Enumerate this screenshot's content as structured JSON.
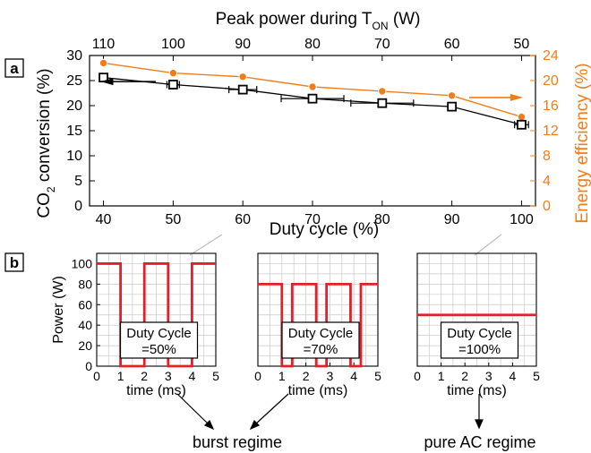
{
  "panel_labels": {
    "a": "a",
    "b": "b"
  },
  "colors": {
    "black": "#000000",
    "orange": "#f07d1a",
    "red": "#e0202a",
    "grey": "#bdbdbd"
  },
  "annotations": {
    "burst": "burst regime",
    "ac": "pure AC regime"
  },
  "chart_data": [
    {
      "type": "line",
      "panel": "a",
      "xlabel": "Duty cycle (%)",
      "x2label_main": "Peak power during T",
      "x2label_sub": "ON",
      "x2label_unit": " (W)",
      "ylabel_main": "CO",
      "ylabel_sub": "2",
      "ylabel_rest": " conversion (%)",
      "y2label": "Energy efficiency (%)",
      "x": [
        40,
        50,
        60,
        70,
        80,
        90,
        100
      ],
      "xlim": [
        38,
        102
      ],
      "xticks": [
        40,
        50,
        60,
        70,
        80,
        90,
        100
      ],
      "x2ticks": [
        "110",
        "100",
        "90",
        "80",
        "70",
        "60",
        "50"
      ],
      "ylim": [
        0,
        30
      ],
      "yticks": [
        0,
        5,
        10,
        15,
        20,
        25,
        30
      ],
      "y2lim": [
        0,
        24
      ],
      "y2ticks": [
        0,
        4,
        8,
        12,
        16,
        20,
        24
      ],
      "series": [
        {
          "axis": "left",
          "color": "#000000",
          "marker": "square",
          "values": [
            25.6,
            24.2,
            23.2,
            21.4,
            20.5,
            19.8,
            16.2
          ],
          "xerr": [
            0.5,
            0.9,
            2.0,
            4.5,
            4.5,
            0.5,
            1.0
          ]
        },
        {
          "axis": "right",
          "color": "#f07d1a",
          "marker": "circle",
          "values": [
            22.8,
            21.2,
            20.6,
            19.0,
            18.3,
            17.6,
            14.2
          ]
        }
      ],
      "grid": false
    },
    {
      "type": "line",
      "panel": "b",
      "ylabel": "Power (W)",
      "xlabel": "time (ms)",
      "xlim": [
        0,
        5
      ],
      "ylim": [
        0,
        110
      ],
      "xticks": [
        0,
        1,
        2,
        3,
        4,
        5
      ],
      "yticks": [
        0,
        20,
        40,
        60,
        80,
        100
      ],
      "grid": true,
      "box_line1": "Duty Cycle",
      "box_line2": "=50%",
      "x": [
        0,
        1,
        1,
        2,
        2,
        3,
        3,
        4,
        4,
        5
      ],
      "y": [
        100,
        100,
        0,
        0,
        100,
        100,
        0,
        0,
        100,
        100
      ]
    },
    {
      "type": "line",
      "panel": "b",
      "xlabel": "time (ms)",
      "xlim": [
        0,
        5
      ],
      "ylim": [
        0,
        110
      ],
      "xticks": [
        0,
        1,
        2,
        3,
        4,
        5
      ],
      "grid": true,
      "box_line1": "Duty Cycle",
      "box_line2": "=70%",
      "x": [
        0,
        1.0,
        1.0,
        1.43,
        1.43,
        2.43,
        2.43,
        2.86,
        2.86,
        3.86,
        3.86,
        4.29,
        4.29,
        5
      ],
      "y": [
        80,
        80,
        0,
        0,
        80,
        80,
        0,
        0,
        80,
        80,
        0,
        0,
        80,
        80
      ]
    },
    {
      "type": "line",
      "panel": "b",
      "xlabel": "time (ms)",
      "xlim": [
        0,
        5
      ],
      "ylim": [
        0,
        110
      ],
      "xticks": [
        0,
        1,
        2,
        3,
        4,
        5
      ],
      "grid": true,
      "box_line1": "Duty Cycle",
      "box_line2": "=100%",
      "x": [
        0,
        5
      ],
      "y": [
        50,
        50
      ]
    }
  ]
}
